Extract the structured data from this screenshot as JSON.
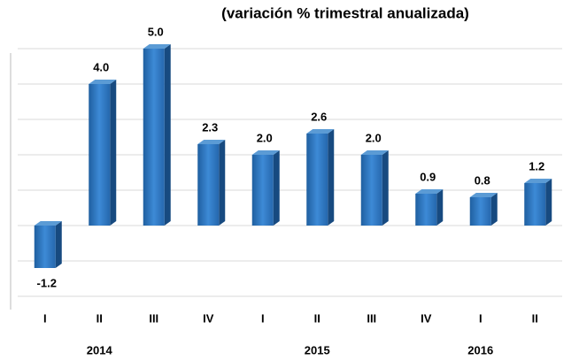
{
  "chart_data": {
    "type": "bar",
    "title": "(variación % trimestral anualizada)",
    "categories": [
      "I",
      "II",
      "III",
      "IV",
      "I",
      "II",
      "III",
      "IV",
      "I",
      "II"
    ],
    "years": [
      "2014",
      "2015",
      "2016"
    ],
    "values": [
      -1.2,
      4.0,
      5.0,
      2.3,
      2.0,
      2.6,
      2.0,
      0.9,
      0.8,
      1.2
    ],
    "value_labels": [
      "-1.2",
      "4.0",
      "5.0",
      "2.3",
      "2.0",
      "2.6",
      "2.0",
      "0.9",
      "0.8",
      "1.2"
    ],
    "color": "#2e75b6",
    "ylim": [
      -2.3,
      5.5
    ],
    "yticks": [
      -2,
      -1,
      0,
      1,
      2,
      3,
      4,
      5
    ],
    "grid": true
  }
}
